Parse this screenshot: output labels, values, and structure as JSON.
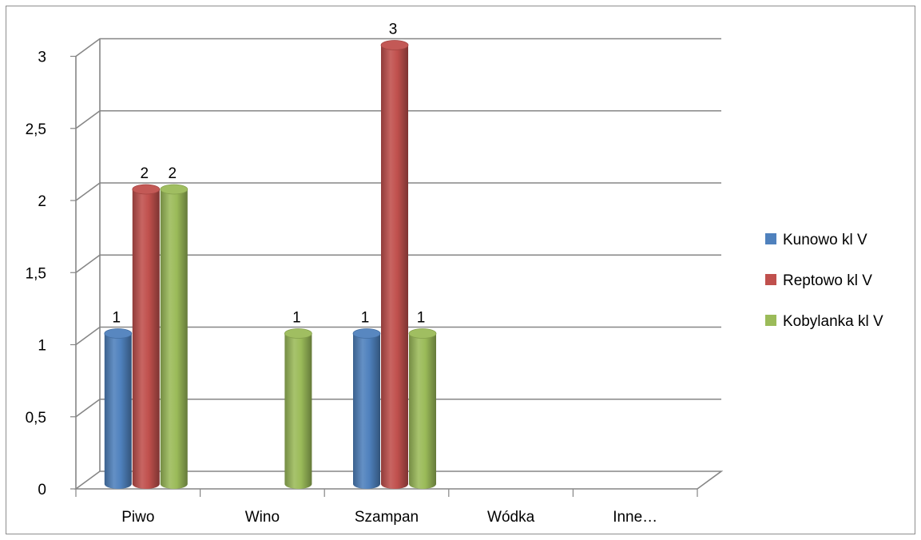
{
  "chart_data": {
    "type": "bar",
    "title": "",
    "xlabel": "",
    "ylabel": "",
    "categories": [
      "Piwo",
      "Wino",
      "Szampan",
      "Wódka",
      "Inne…"
    ],
    "series": [
      {
        "name": "Kunowo kl V",
        "color": "#4f81bd",
        "values": [
          1,
          0,
          1,
          0,
          0
        ]
      },
      {
        "name": "Reptowo kl V",
        "color": "#c0504d",
        "values": [
          2,
          0,
          3,
          0,
          0
        ]
      },
      {
        "name": "Kobylanka kl V",
        "color": "#9bbb59",
        "values": [
          2,
          1,
          1,
          0,
          0
        ]
      }
    ],
    "ylim": [
      0,
      3
    ],
    "yticks": [
      0,
      0.5,
      1,
      1.5,
      2,
      2.5,
      3
    ],
    "ytick_labels": [
      "0",
      "0,5",
      "1",
      "1,5",
      "2",
      "2,5",
      "3"
    ],
    "grid": true,
    "three_d": true,
    "legend_position": "right",
    "data_labels": true
  }
}
